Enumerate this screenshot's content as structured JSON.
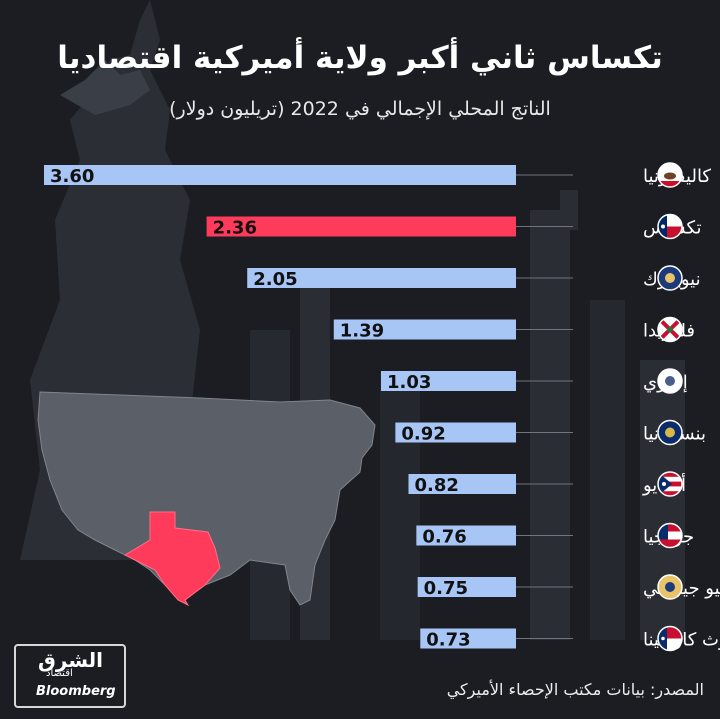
{
  "title": "تكساس ثاني أكبر ولاية أميركية اقتصاديا",
  "subtitle": "الناتج المحلي الإجمالي في 2022 (تريليون دولار)",
  "source": "المصدر: بيانات مكتب الإحصاء الأميركي",
  "logo": {
    "arabic": "الشرق",
    "arabic_sub": "اقتصاد",
    "english": "Bloomberg"
  },
  "colors": {
    "default_bar": "#a8c6f5",
    "highlight_bar": "#ff3b5c",
    "texas_map": "#ff3b5c",
    "us_map": "#5b5f68"
  },
  "chart_data": {
    "type": "bar",
    "orientation": "horizontal",
    "categories": [
      "كاليفورنيا",
      "تكساس",
      "نيويورك",
      "فلوريدا",
      "إلينوي",
      "بنسلفانيا",
      "أوهايو",
      "جورجيا",
      "نيو جيرسي",
      "نورث كارولينا"
    ],
    "values": [
      3.6,
      2.36,
      2.05,
      1.39,
      1.03,
      0.92,
      0.82,
      0.76,
      0.75,
      0.73
    ],
    "value_labels": [
      "3.60",
      "2.36",
      "2.05",
      "1.39",
      "1.03",
      "0.92",
      "0.82",
      "0.76",
      "0.75",
      "0.73"
    ],
    "highlight": "تكساس",
    "flag_icons": [
      "california-flag-icon",
      "texas-flag-icon",
      "new-york-flag-icon",
      "florida-flag-icon",
      "illinois-flag-icon",
      "pennsylvania-flag-icon",
      "ohio-flag-icon",
      "georgia-flag-icon",
      "new-jersey-flag-icon",
      "north-carolina-flag-icon"
    ],
    "xlim": [
      0,
      3.6
    ]
  }
}
